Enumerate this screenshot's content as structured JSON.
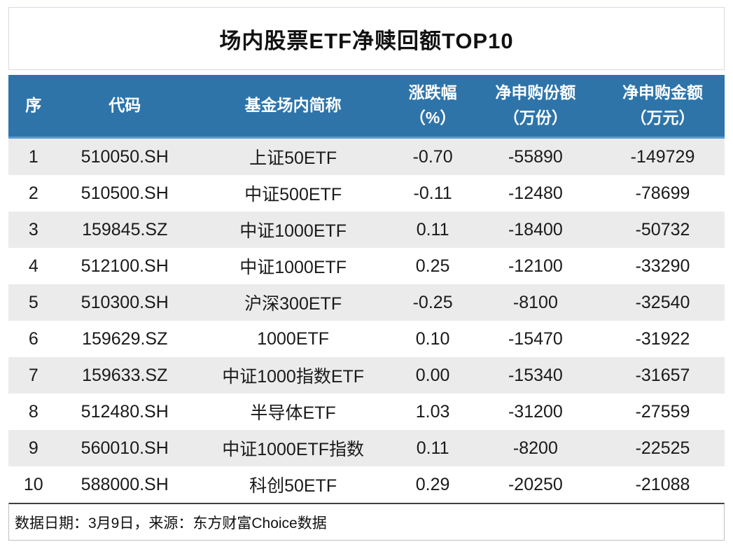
{
  "chart_data": {
    "type": "table",
    "title": "场内股票ETF净赎回额TOP10",
    "columns": [
      {
        "label": "序",
        "unit": ""
      },
      {
        "label": "代码",
        "unit": ""
      },
      {
        "label": "基金场内简称",
        "unit": ""
      },
      {
        "label": "涨跌幅",
        "unit": "（%）"
      },
      {
        "label": "净申购份额",
        "unit": "（万份）"
      },
      {
        "label": "净申购金额",
        "unit": "（万元）"
      }
    ],
    "rows": [
      [
        "1",
        "510050.SH",
        "上证50ETF",
        "-0.70",
        "-55890",
        "-149729"
      ],
      [
        "2",
        "510500.SH",
        "中证500ETF",
        "-0.11",
        "-12480",
        "-78699"
      ],
      [
        "3",
        "159845.SZ",
        "中证1000ETF",
        "0.11",
        "-18400",
        "-50732"
      ],
      [
        "4",
        "512100.SH",
        "中证1000ETF",
        "0.25",
        "-12100",
        "-33290"
      ],
      [
        "5",
        "510300.SH",
        "沪深300ETF",
        "-0.25",
        "-8100",
        "-32540"
      ],
      [
        "6",
        "159629.SZ",
        "1000ETF",
        "0.10",
        "-15470",
        "-31922"
      ],
      [
        "7",
        "159633.SZ",
        "中证1000指数ETF",
        "0.00",
        "-15340",
        "-31657"
      ],
      [
        "8",
        "512480.SH",
        "半导体ETF",
        "1.03",
        "-31200",
        "-27559"
      ],
      [
        "9",
        "560010.SH",
        "中证1000ETF指数",
        "0.11",
        "-8200",
        "-22525"
      ],
      [
        "10",
        "588000.SH",
        "科创50ETF",
        "0.29",
        "-20250",
        "-21088"
      ]
    ],
    "footnote": "数据日期：3月9日，来源：东方财富Choice数据",
    "layout_hints": {
      "header_bg": "#2e74a9",
      "header_text_color": "#ffffff",
      "header_underline": "#5b9bd5",
      "row_stripe": "#ebebeb",
      "legend_position": "none",
      "grid": "off"
    }
  }
}
